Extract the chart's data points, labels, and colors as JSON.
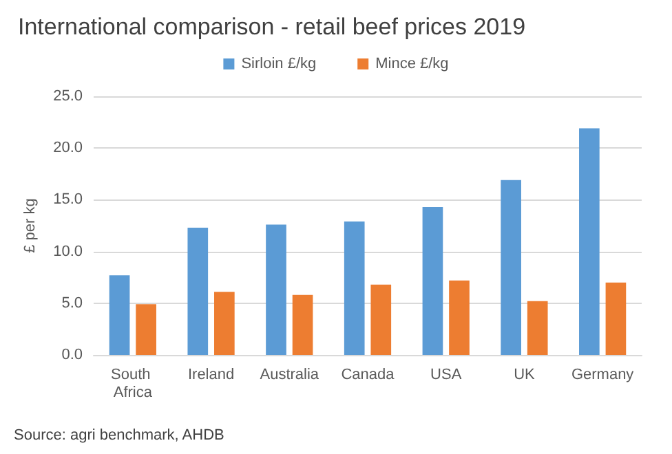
{
  "chart_data": {
    "type": "bar",
    "title": "International comparison - retail beef prices 2019",
    "ylabel": "£ per kg",
    "categories": [
      "South Africa",
      "Ireland",
      "Australia",
      "Canada",
      "USA",
      "UK",
      "Germany"
    ],
    "series": [
      {
        "name": "Sirloin £/kg",
        "color": "#5b9bd5",
        "values": [
          7.7,
          12.3,
          12.6,
          12.9,
          14.3,
          16.9,
          21.9
        ]
      },
      {
        "name": "Mince £/kg",
        "color": "#ed7d31",
        "values": [
          4.9,
          6.1,
          5.8,
          6.8,
          7.2,
          5.2,
          7.0
        ]
      }
    ],
    "ylim": [
      0,
      25
    ],
    "yticks": [
      {
        "value": 0,
        "label": "0.0"
      },
      {
        "value": 5,
        "label": "5.0"
      },
      {
        "value": 10,
        "label": "10.0"
      },
      {
        "value": 15,
        "label": "15.0"
      },
      {
        "value": 20,
        "label": "20.0"
      },
      {
        "value": 25,
        "label": "25.0"
      }
    ],
    "grid": "y",
    "legend": "top",
    "annotations": [
      "Source: agri benchmark, AHDB"
    ]
  }
}
